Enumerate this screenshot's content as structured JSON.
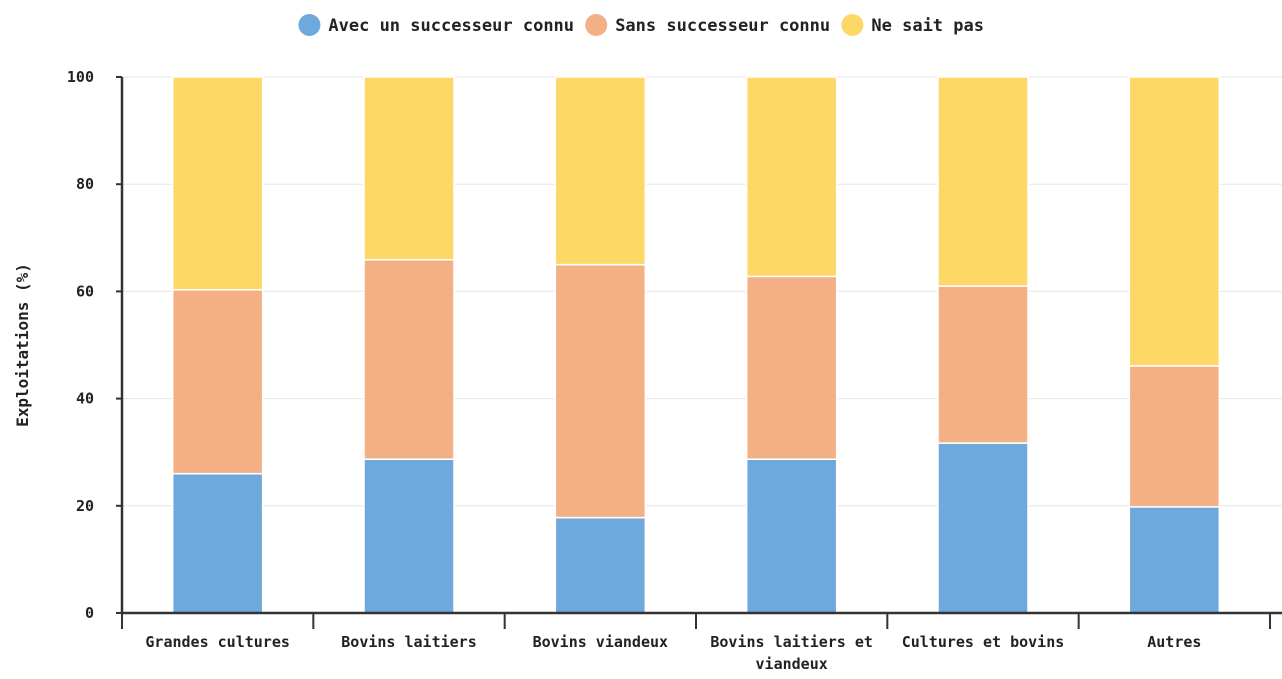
{
  "chart_data": {
    "type": "bar",
    "stacked": true,
    "title": "",
    "xlabel": "",
    "ylabel": "Exploitations (%)",
    "ylim": [
      0,
      100
    ],
    "yticks": [
      0,
      20,
      40,
      60,
      80,
      100
    ],
    "grid": "horizontal",
    "legend_position": "top-center",
    "categories": [
      "Grandes cultures",
      "Bovins laitiers",
      "Bovins viandeux",
      "Bovins laitiers et viandeux",
      "Cultures et bovins",
      "Autres"
    ],
    "series": [
      {
        "name": "Avec un successeur connu",
        "color": "#6fa8dc",
        "values": [
          26,
          28.7,
          17.8,
          28.7,
          31.7,
          19.8
        ]
      },
      {
        "name": "Sans successeur connu",
        "color": "#f3b084",
        "values": [
          34.3,
          37.2,
          47.2,
          34.1,
          29.3,
          26.3
        ]
      },
      {
        "name": "Ne sait pas",
        "color": "#fdd867",
        "values": [
          39.7,
          34.1,
          35,
          37.2,
          39,
          53.9
        ]
      }
    ]
  }
}
